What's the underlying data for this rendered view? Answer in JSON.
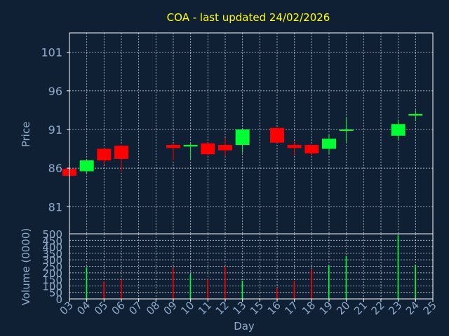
{
  "colors": {
    "background": "#0f2035",
    "title": "#ffff00",
    "axis_text": "#8fa9c8",
    "grid": "#ffffff",
    "frame": "#ffffff",
    "up": "#00ff33",
    "down": "#ff0000"
  },
  "chart_data": [
    {
      "type": "candlestick",
      "title": "COA - last updated 24/02/2026",
      "ylabel": "Price",
      "ylim": [
        77.5,
        103.5
      ],
      "yticks": [
        81,
        86,
        91,
        96,
        101
      ],
      "grid": true,
      "x_tick_labels": [
        "03",
        "04",
        "05",
        "06",
        "07",
        "08",
        "09",
        "10",
        "11",
        "12",
        "13",
        "15",
        "16",
        "17",
        "18",
        "19",
        "20",
        "21",
        "22",
        "23",
        "24",
        "25"
      ],
      "candles": [
        {
          "day": "03",
          "open": 85.9,
          "high": 86.2,
          "low": 85.0,
          "close": 85.0
        },
        {
          "day": "04",
          "open": 85.6,
          "high": 87.0,
          "low": 85.3,
          "close": 87.0
        },
        {
          "day": "05",
          "open": 88.5,
          "high": 88.6,
          "low": 86.5,
          "close": 87.0
        },
        {
          "day": "06",
          "open": 88.9,
          "high": 89.0,
          "low": 85.5,
          "close": 87.2
        },
        {
          "day": "09",
          "open": 89.0,
          "high": 89.2,
          "low": 87.0,
          "close": 88.6
        },
        {
          "day": "10",
          "open": 88.8,
          "high": 89.2,
          "low": 87.2,
          "close": 89.0
        },
        {
          "day": "11",
          "open": 89.2,
          "high": 89.3,
          "low": 87.6,
          "close": 87.8
        },
        {
          "day": "12",
          "open": 89.0,
          "high": 89.9,
          "low": 87.5,
          "close": 88.3
        },
        {
          "day": "13",
          "open": 89.0,
          "high": 91.0,
          "low": 88.0,
          "close": 91.0
        },
        {
          "day": "16",
          "open": 91.2,
          "high": 91.2,
          "low": 89.3,
          "close": 89.3
        },
        {
          "day": "17",
          "open": 89.0,
          "high": 89.5,
          "low": 87.6,
          "close": 88.6
        },
        {
          "day": "18",
          "open": 89.0,
          "high": 89.0,
          "low": 87.6,
          "close": 87.9
        },
        {
          "day": "19",
          "open": 88.5,
          "high": 90.4,
          "low": 87.9,
          "close": 89.8
        },
        {
          "day": "20",
          "open": 90.9,
          "high": 92.5,
          "low": 89.3,
          "close": 91.0
        },
        {
          "day": "23",
          "open": 90.2,
          "high": 92.3,
          "low": 89.6,
          "close": 91.7
        },
        {
          "day": "24",
          "open": 92.8,
          "high": 93.5,
          "low": 92.1,
          "close": 93.0
        }
      ]
    },
    {
      "type": "bar",
      "ylabel": "Volume (0000)",
      "xlabel": "Day",
      "ylim": [
        0,
        500
      ],
      "yticks": [
        0,
        50,
        100,
        150,
        200,
        250,
        300,
        350,
        400,
        450,
        500
      ],
      "grid": true,
      "categories": [
        "04",
        "05",
        "06",
        "09",
        "10",
        "11",
        "12",
        "13",
        "16",
        "17",
        "18",
        "19",
        "20",
        "23",
        "24"
      ],
      "values": [
        242,
        135,
        148,
        235,
        190,
        150,
        245,
        140,
        85,
        140,
        228,
        255,
        330,
        488,
        260
      ]
    }
  ]
}
